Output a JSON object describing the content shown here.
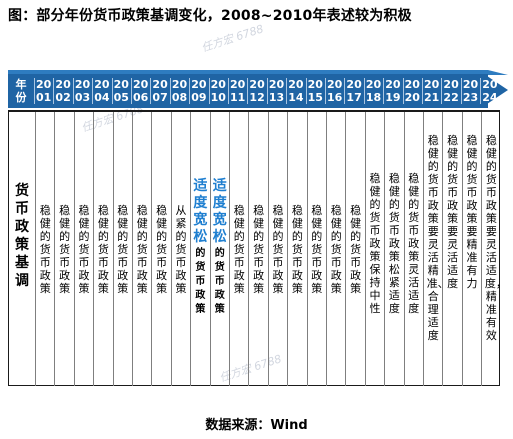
{
  "title": "图：部分年份货币政策基调变化，2008~2010年表述较为积极",
  "header": {
    "label": "年份",
    "years": [
      "2001",
      "2002",
      "2003",
      "2004",
      "2005",
      "2006",
      "2007",
      "2008",
      "2009",
      "2010",
      "2011",
      "2012",
      "2013",
      "2014",
      "2015",
      "2016",
      "2017",
      "2018",
      "2019",
      "2020",
      "2021",
      "2022",
      "2023",
      "2024"
    ]
  },
  "row_label": "货币政策基调",
  "stances": [
    "稳健的货币政策",
    "稳健的货币政策",
    "稳健的货币政策",
    "稳健的货币政策",
    "稳健的货币政策",
    "稳健的货币政策",
    "稳健的货币政策",
    "从紧的货币政策",
    "适度宽松的货币政策",
    "适度宽松的货币政策",
    "稳健的货币政策",
    "稳健的货币政策",
    "稳健的货币政策",
    "稳健的货币政策",
    "稳健的货币政策",
    "稳健的货币政策",
    "稳健的货币政策",
    "稳健的货币政策保持中性",
    "稳健的货币政策松紧适度",
    "稳健的货币政策灵活适度",
    "稳健的货币政策要灵活精准、合理适度",
    "稳健的货币政策要灵活适度",
    "稳健的货币政策要精准有力",
    "稳健的货币政策要灵活适度，精准有效"
  ],
  "highlight_prefix": "适度宽松",
  "highlight_suffix": "的货币政策",
  "highlight_color": "#1f7fd0",
  "header_color": "#1f64a4",
  "watermark": "任方宏 6788",
  "source": "数据来源：Wind"
}
